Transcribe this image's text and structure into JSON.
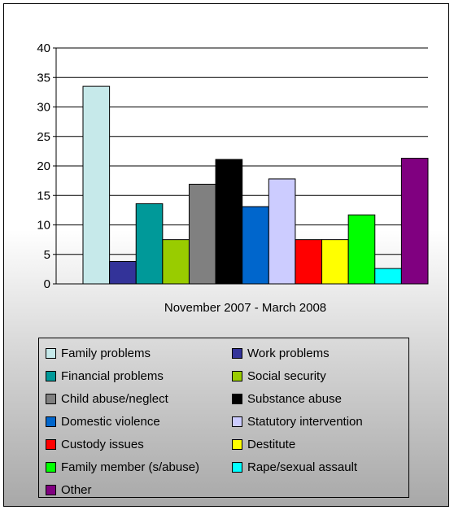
{
  "chart_data": {
    "type": "bar",
    "xlabel": "November 2007 - March 2008",
    "ylim": [
      0,
      40
    ],
    "yticks": [
      0,
      5,
      10,
      15,
      20,
      25,
      30,
      35,
      40
    ],
    "grid": true,
    "legend_position": "bottom",
    "series": [
      {
        "name": "Family problems",
        "value": 33.5,
        "color": "#c6e9ea"
      },
      {
        "name": "Work problems",
        "value": 3.8,
        "color": "#333399"
      },
      {
        "name": "Financial problems",
        "value": 13.6,
        "color": "#009999"
      },
      {
        "name": "Social security",
        "value": 7.5,
        "color": "#99cc00"
      },
      {
        "name": "Child abuse/neglect",
        "value": 16.9,
        "color": "#808080"
      },
      {
        "name": "Substance abuse",
        "value": 21.1,
        "color": "#000000"
      },
      {
        "name": "Domestic violence",
        "value": 13.1,
        "color": "#0066cc"
      },
      {
        "name": "Statutory intervention",
        "value": 17.8,
        "color": "#ccccff"
      },
      {
        "name": "Custody issues",
        "value": 7.5,
        "color": "#ff0000"
      },
      {
        "name": "Destitute",
        "value": 7.5,
        "color": "#ffff00"
      },
      {
        "name": "Family member (s/abuse)",
        "value": 11.7,
        "color": "#00ff00"
      },
      {
        "name": "Rape/sexual assault",
        "value": 2.6,
        "color": "#00ffff"
      },
      {
        "name": "Other",
        "value": 21.3,
        "color": "#800080"
      }
    ]
  }
}
